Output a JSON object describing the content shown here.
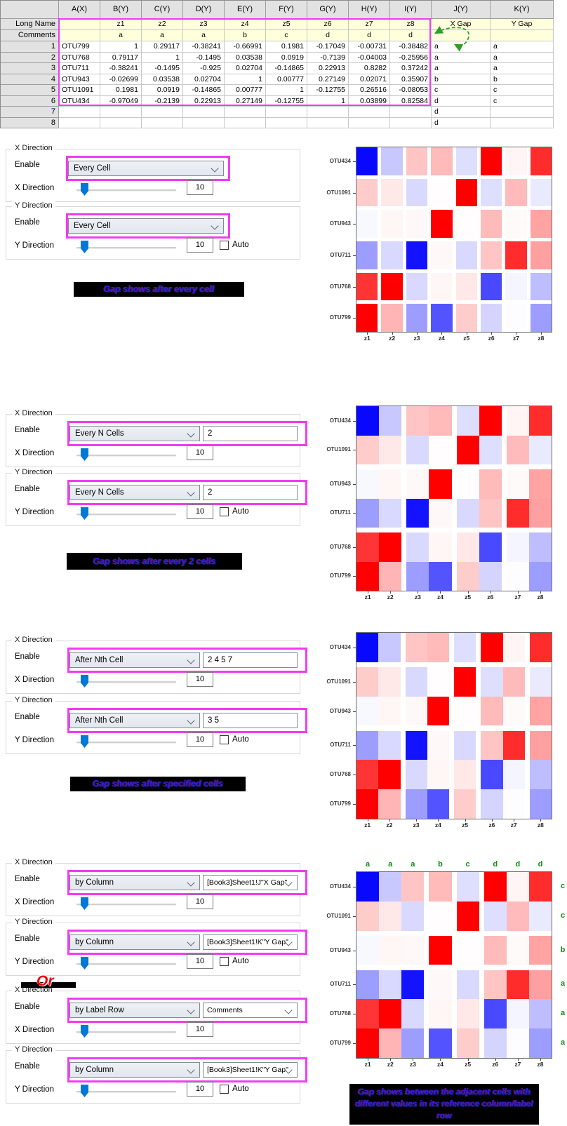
{
  "worksheet": {
    "column_headers": [
      "A(X)",
      "B(Y)",
      "C(Y)",
      "D(Y)",
      "E(Y)",
      "F(Y)",
      "G(Y)",
      "H(Y)",
      "I(Y)",
      "J(Y)",
      "K(Y)"
    ],
    "long_name_row": {
      "header": "Long Name",
      "cells": [
        "",
        "z1",
        "z2",
        "z3",
        "z4",
        "z5",
        "z6",
        "z7",
        "z8",
        "X Gap",
        "Y Gap"
      ]
    },
    "comments_row": {
      "header": "Comments",
      "cells": [
        "",
        "a",
        "a",
        "a",
        "b",
        "c",
        "d",
        "d",
        "d",
        "",
        ""
      ]
    },
    "rows": [
      {
        "header": "1",
        "cells": [
          "OTU799",
          "1",
          "0.29117",
          "-0.38241",
          "-0.66991",
          "0.1981",
          "-0.17049",
          "-0.00731",
          "-0.38482",
          "a",
          "a"
        ]
      },
      {
        "header": "2",
        "cells": [
          "OTU768",
          "0.79117",
          "1",
          "-0.1495",
          "0.03538",
          "0.0919",
          "-0.7139",
          "-0.04003",
          "-0.25956",
          "a",
          "a"
        ]
      },
      {
        "header": "3",
        "cells": [
          "OTU711",
          "-0.38241",
          "-0.1495",
          "-0.925",
          "0.02704",
          "-0.14865",
          "0.22913",
          "0.8282",
          "0.37242",
          "a",
          "a"
        ]
      },
      {
        "header": "4",
        "cells": [
          "OTU943",
          "-0.02699",
          "0.03538",
          "0.02704",
          "1",
          "0.00777",
          "0.27149",
          "0.02071",
          "0.35907",
          "b",
          "b"
        ]
      },
      {
        "header": "5",
        "cells": [
          "OTU1091",
          "0.1981",
          "0.0919",
          "-0.14865",
          "0.00777",
          "1",
          "-0.12755",
          "0.26516",
          "-0.08053",
          "c",
          "c"
        ]
      },
      {
        "header": "6",
        "cells": [
          "OTU434",
          "-0.97049",
          "-0.2139",
          "0.22913",
          "0.27149",
          "-0.12755",
          "1",
          "0.03899",
          "0.82584",
          "d",
          "c"
        ]
      },
      {
        "header": "7",
        "cells": [
          "",
          "",
          "",
          "",
          "",
          "",
          "",
          "",
          "",
          "d",
          ""
        ]
      },
      {
        "header": "8",
        "cells": [
          "",
          "",
          "",
          "",
          "",
          "",
          "",
          "",
          "",
          "d",
          ""
        ]
      }
    ]
  },
  "controls": {
    "x_group_title": "X Direction",
    "y_group_title": "Y Direction",
    "enable_label": "Enable",
    "x_slider_label": "X Direction",
    "y_slider_label": "Y Direction",
    "auto_label": "Auto",
    "slider_value": "10",
    "or_label": "Or",
    "sections": [
      {
        "id": "every-cell",
        "x": {
          "combo": "Every Cell",
          "second": null
        },
        "y": {
          "combo": "Every Cell",
          "second": null
        }
      },
      {
        "id": "every-n-cells",
        "x": {
          "combo": "Every N Cells",
          "second": {
            "type": "input",
            "value": "2"
          }
        },
        "y": {
          "combo": "Every N Cells",
          "second": {
            "type": "input",
            "value": "2"
          }
        }
      },
      {
        "id": "after-nth-cell",
        "x": {
          "combo": "After Nth Cell",
          "second": {
            "type": "input",
            "value": "2 4 5 7"
          }
        },
        "y": {
          "combo": "After Nth Cell",
          "second": {
            "type": "input",
            "value": "3 5"
          }
        }
      },
      {
        "id": "by-column",
        "x": {
          "combo": "by Column",
          "second": {
            "type": "dropdown",
            "value": "[Book3]Sheet1!J\"X Gap\""
          }
        },
        "y": {
          "combo": "by Column",
          "second": {
            "type": "dropdown",
            "value": "[Book3]Sheet1!K\"Y Gap\""
          }
        }
      },
      {
        "id": "by-label-row",
        "x": {
          "combo": "by Label Row",
          "second": {
            "type": "dropdown",
            "value": "Comments"
          }
        },
        "y": {
          "combo": "by Column",
          "second": {
            "type": "dropdown",
            "value": "[Book3]Sheet1!K\"Y Gap\""
          }
        }
      }
    ]
  },
  "captions": [
    {
      "text": "Gap shows after every cell"
    },
    {
      "text": "Gap shows after every 2 cells"
    },
    {
      "text": "Gap shows after specified cells"
    },
    {
      "text": "Gap shows between the adjacent cells with different values in its reference column/label row"
    }
  ],
  "chart_data": {
    "type": "heatmap",
    "columns": [
      "z1",
      "z2",
      "z3",
      "z4",
      "z5",
      "z6",
      "z7",
      "z8"
    ],
    "rows_bottom_to_top": [
      "OTU799",
      "OTU768",
      "OTU711",
      "OTU943",
      "OTU1091",
      "OTU434"
    ],
    "matrix_rows_bottom_to_top": [
      {
        "name": "OTU799",
        "values": [
          1,
          0.29117,
          -0.38241,
          -0.66991,
          0.1981,
          -0.17049,
          -0.00731,
          -0.38482
        ]
      },
      {
        "name": "OTU768",
        "values": [
          0.79117,
          1,
          -0.1495,
          0.03538,
          0.0919,
          -0.7139,
          -0.04003,
          -0.25956
        ]
      },
      {
        "name": "OTU711",
        "values": [
          -0.38241,
          -0.1495,
          -0.925,
          0.02704,
          -0.14865,
          0.22913,
          0.8282,
          0.37242
        ]
      },
      {
        "name": "OTU943",
        "values": [
          -0.02699,
          0.03538,
          0.02704,
          1,
          0.00777,
          0.27149,
          0.02071,
          0.35907
        ]
      },
      {
        "name": "OTU1091",
        "values": [
          0.1981,
          0.0919,
          -0.14865,
          0.00777,
          1,
          -0.12755,
          0.26516,
          -0.08053
        ]
      },
      {
        "name": "OTU434",
        "values": [
          -0.97049,
          -0.2139,
          0.22913,
          0.27149,
          -0.12755,
          1,
          0.03899,
          0.82584
        ]
      }
    ],
    "colormap": {
      "min": -1,
      "max": 1,
      "negative": "#0000ff",
      "zero": "#ffffff",
      "positive": "#ff0000"
    },
    "variants": [
      {
        "name": "heatmap-every-cell",
        "x_gaps_after": [
          1,
          2,
          3,
          4,
          5,
          6,
          7
        ],
        "y_gaps_after_from_bottom": [
          1,
          2,
          3,
          4,
          5
        ],
        "top_labels": null,
        "right_labels_top_to_bottom": null
      },
      {
        "name": "heatmap-every-2-cells",
        "x_gaps_after": [
          2,
          4,
          6
        ],
        "y_gaps_after_from_bottom": [
          2,
          4
        ],
        "top_labels": null,
        "right_labels_top_to_bottom": null
      },
      {
        "name": "heatmap-specified-cells",
        "x_gaps_after": [
          2,
          4,
          5,
          7
        ],
        "y_gaps_after_from_bottom": [
          3,
          5
        ],
        "top_labels": null,
        "right_labels_top_to_bottom": null
      },
      {
        "name": "heatmap-by-column",
        "x_gaps_after": [
          3,
          4,
          5
        ],
        "y_gaps_after_from_bottom": [
          3,
          4
        ],
        "top_labels": [
          "a",
          "a",
          "a",
          "b",
          "c",
          "d",
          "d",
          "d"
        ],
        "right_labels_top_to_bottom": [
          "c",
          "c",
          "b",
          "a",
          "a",
          "a"
        ]
      }
    ]
  }
}
